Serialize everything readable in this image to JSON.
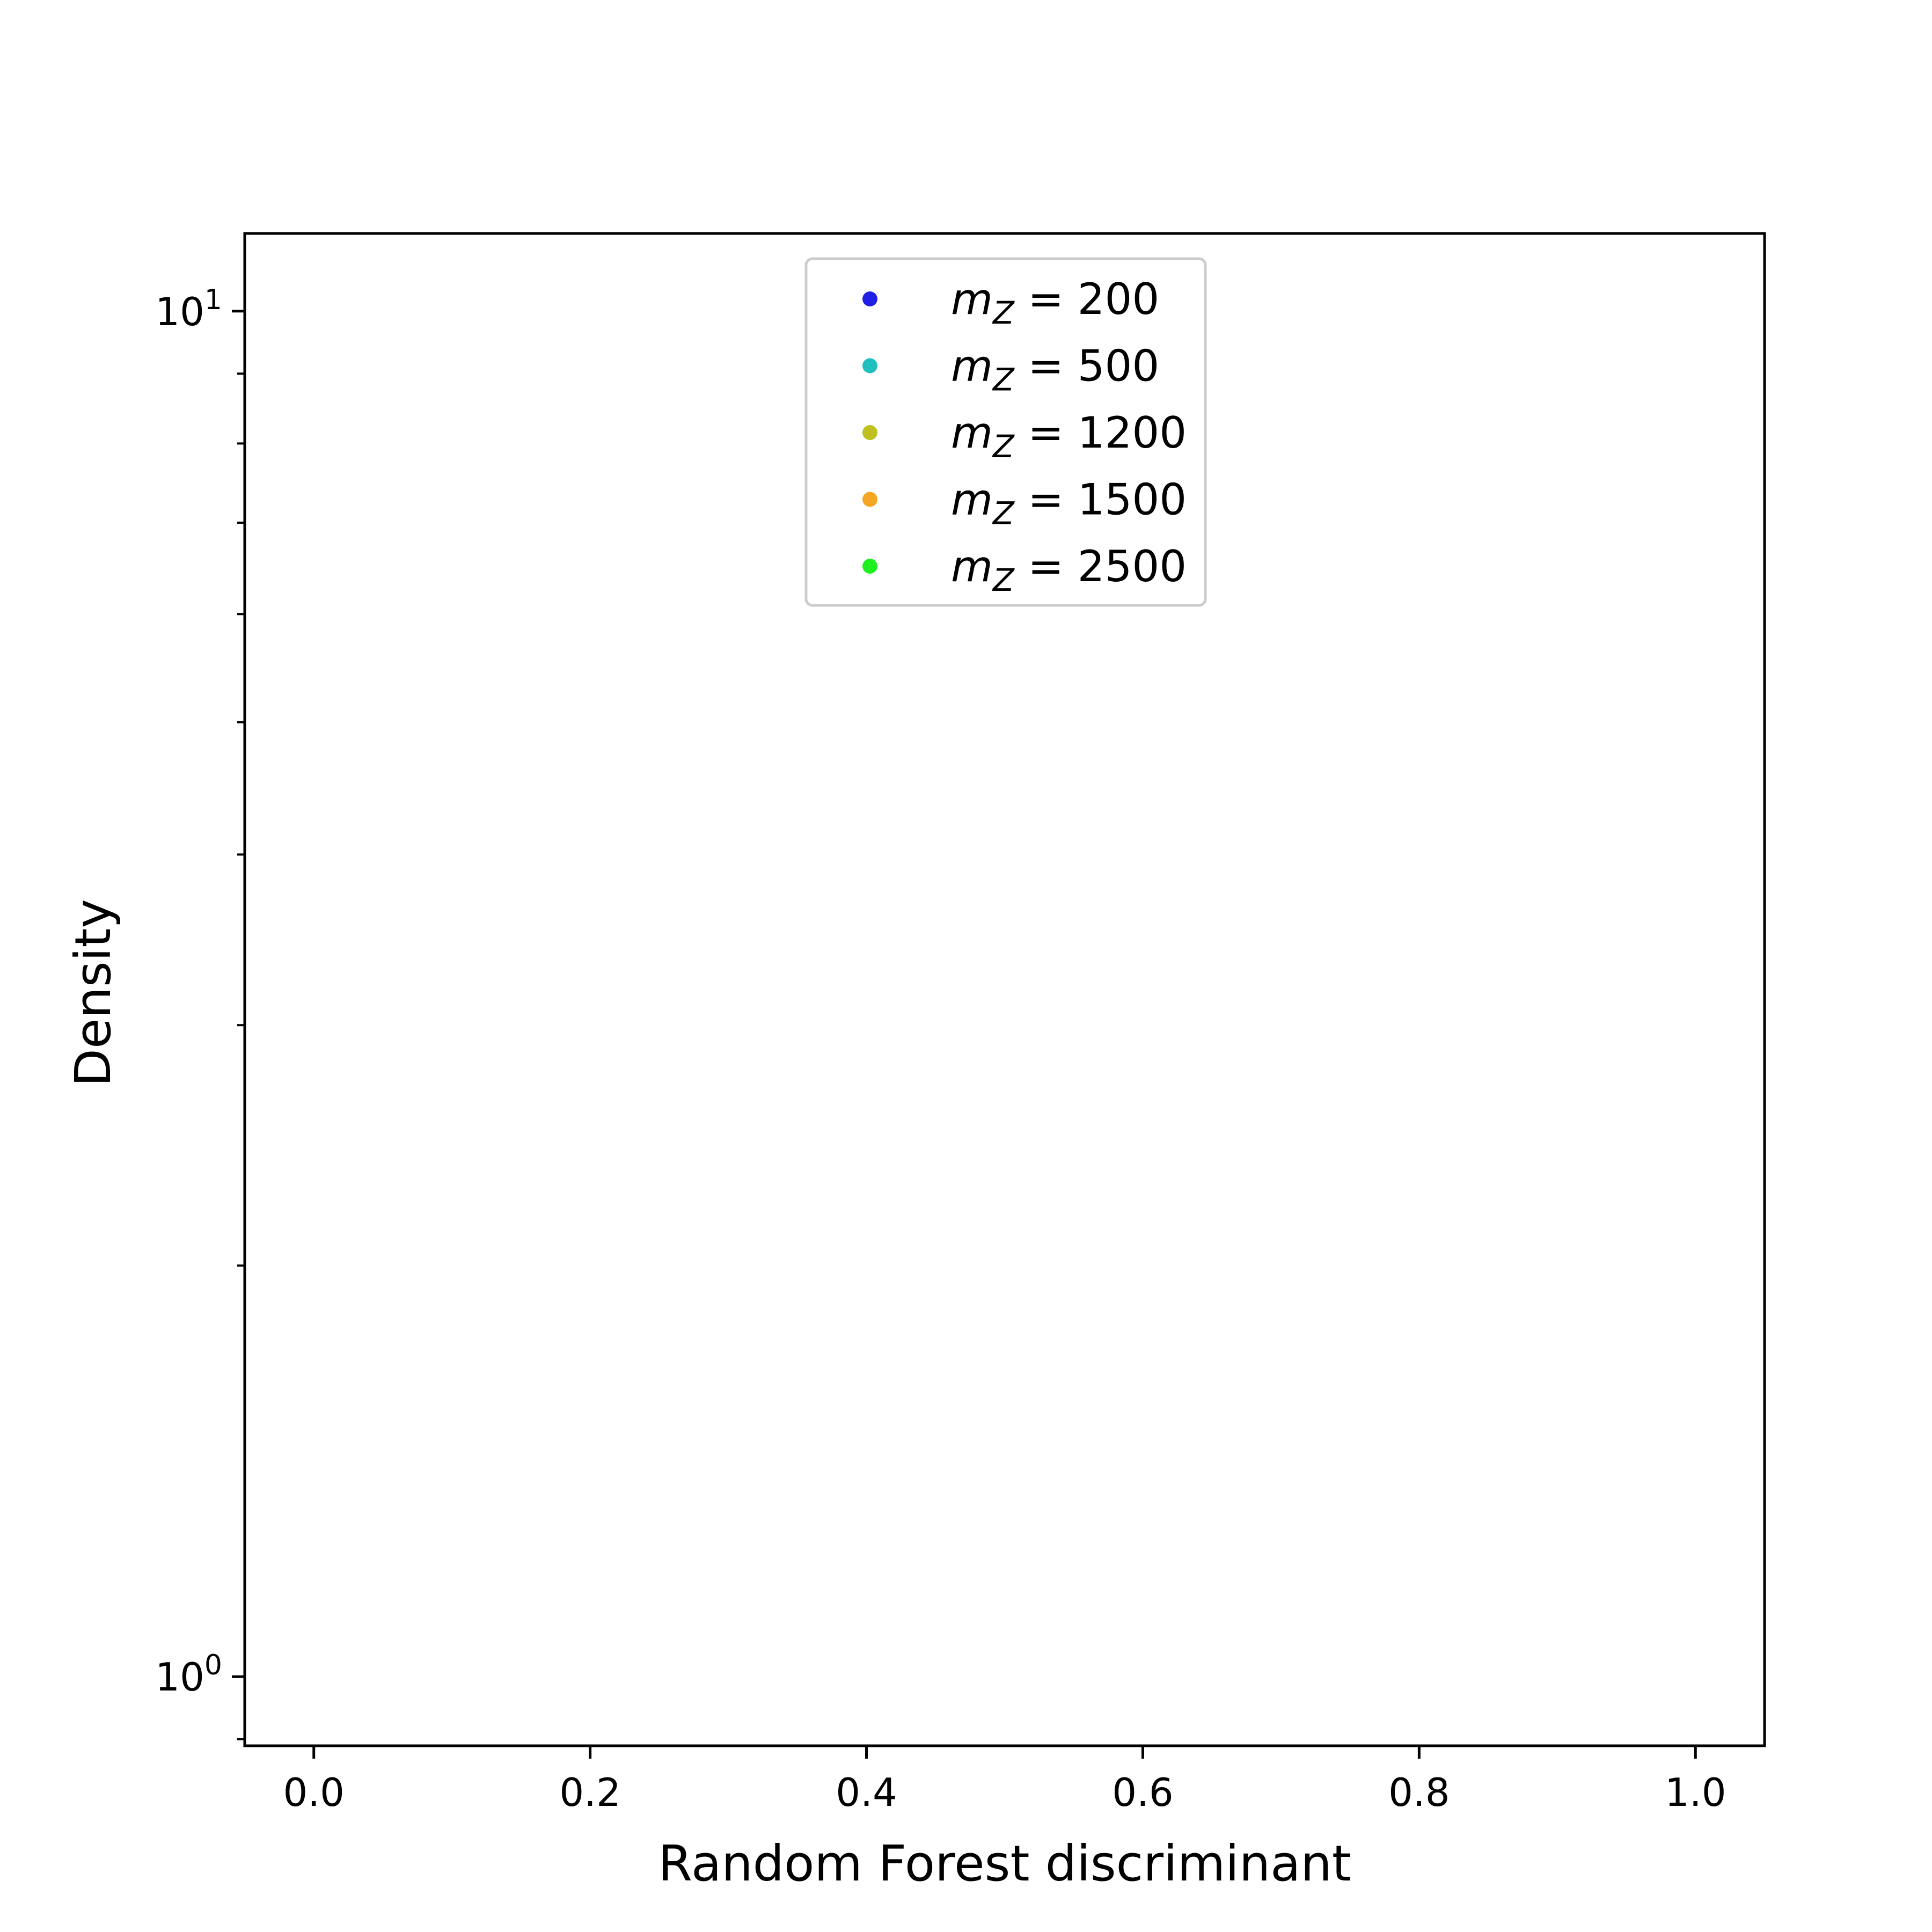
{
  "chart_data": {
    "type": "scatter",
    "title": "",
    "xlabel": "Random Forest discriminant",
    "ylabel": "Density",
    "xlim": [
      -0.05,
      1.05
    ],
    "ylim": [
      0.89,
      11.4
    ],
    "yscale": "log",
    "grid": false,
    "legend_placement": "upper-center",
    "x_ticks": [
      {
        "value": 0.0,
        "label": "0.0"
      },
      {
        "value": 0.2,
        "label": "0.2"
      },
      {
        "value": 0.4,
        "label": "0.4"
      },
      {
        "value": 0.6,
        "label": "0.6"
      },
      {
        "value": 0.8,
        "label": "0.8"
      },
      {
        "value": 1.0,
        "label": "1.0"
      }
    ],
    "y_major_ticks": [
      {
        "value": 1,
        "base": "10",
        "exp": "0"
      },
      {
        "value": 10,
        "base": "10",
        "exp": "1"
      }
    ],
    "y_minor_ticks": [
      0.9,
      2,
      3,
      4,
      5,
      6,
      7,
      8,
      9
    ],
    "series": [
      {
        "name_base": "m",
        "name_sub": "Z",
        "name_value": "= 200",
        "color": "#1f1fe6",
        "points": []
      },
      {
        "name_base": "m",
        "name_sub": "Z",
        "name_value": "= 500",
        "color": "#1fbfbf",
        "points": []
      },
      {
        "name_base": "m",
        "name_sub": "Z",
        "name_value": "= 1200",
        "color": "#bfbf1f",
        "points": []
      },
      {
        "name_base": "m",
        "name_sub": "Z",
        "name_value": "= 1500",
        "color": "#f5a623",
        "points": []
      },
      {
        "name_base": "m",
        "name_sub": "Z",
        "name_value": "= 2500",
        "color": "#1fef1f",
        "points": []
      }
    ]
  }
}
